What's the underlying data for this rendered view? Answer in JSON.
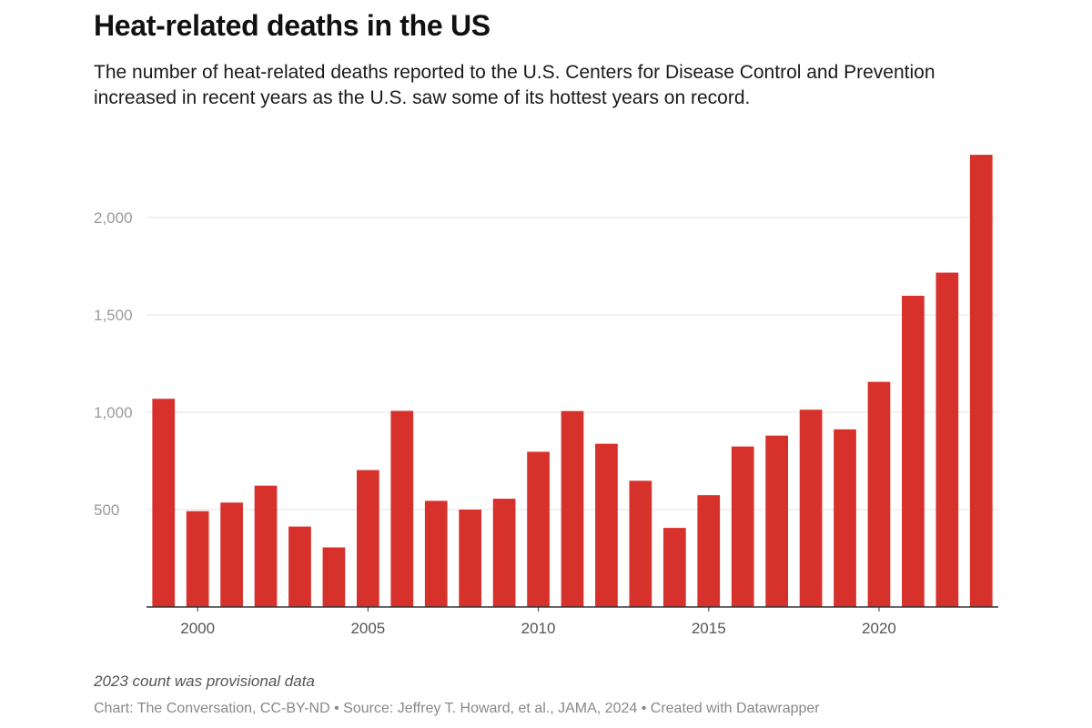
{
  "header": {
    "title": "Heat-related deaths in the US",
    "subtitle": "The number of heat-related deaths reported to the U.S. Centers for Disease Control and Prevention increased in recent years as the U.S. saw some of its hottest years on record."
  },
  "footer": {
    "note": "2023 count was provisional data",
    "source": "Chart: The Conversation, CC-BY-ND • Source: Jeffrey T. Howard, et al., JAMA, 2024 • Created with Datawrapper"
  },
  "colors": {
    "bar": "#d7312b",
    "gridline": "#e3e3e3",
    "axis": "#333333"
  },
  "chart_data": {
    "type": "bar",
    "title": "Heat-related deaths in the US",
    "xlabel": "",
    "ylabel": "",
    "ylim": [
      0,
      2450
    ],
    "grid": true,
    "legend": "none",
    "categories": [
      1999,
      2000,
      2001,
      2002,
      2003,
      2004,
      2005,
      2006,
      2007,
      2008,
      2009,
      2010,
      2011,
      2012,
      2013,
      2014,
      2015,
      2016,
      2017,
      2018,
      2019,
      2020,
      2021,
      2022,
      2023
    ],
    "values": [
      1069,
      492,
      536,
      623,
      413,
      306,
      703,
      1007,
      545,
      500,
      556,
      797,
      1006,
      838,
      648,
      406,
      574,
      824,
      880,
      1013,
      912,
      1156,
      1598,
      1717,
      2322
    ],
    "y_ticks": [
      500,
      1000,
      1500,
      2000
    ],
    "y_tick_labels": [
      "500",
      "1,000",
      "1,500",
      "2,000"
    ],
    "x_ticks": [
      2000,
      2005,
      2010,
      2015,
      2020
    ],
    "x_tick_labels": [
      "2000",
      "2005",
      "2010",
      "2015",
      "2020"
    ]
  }
}
